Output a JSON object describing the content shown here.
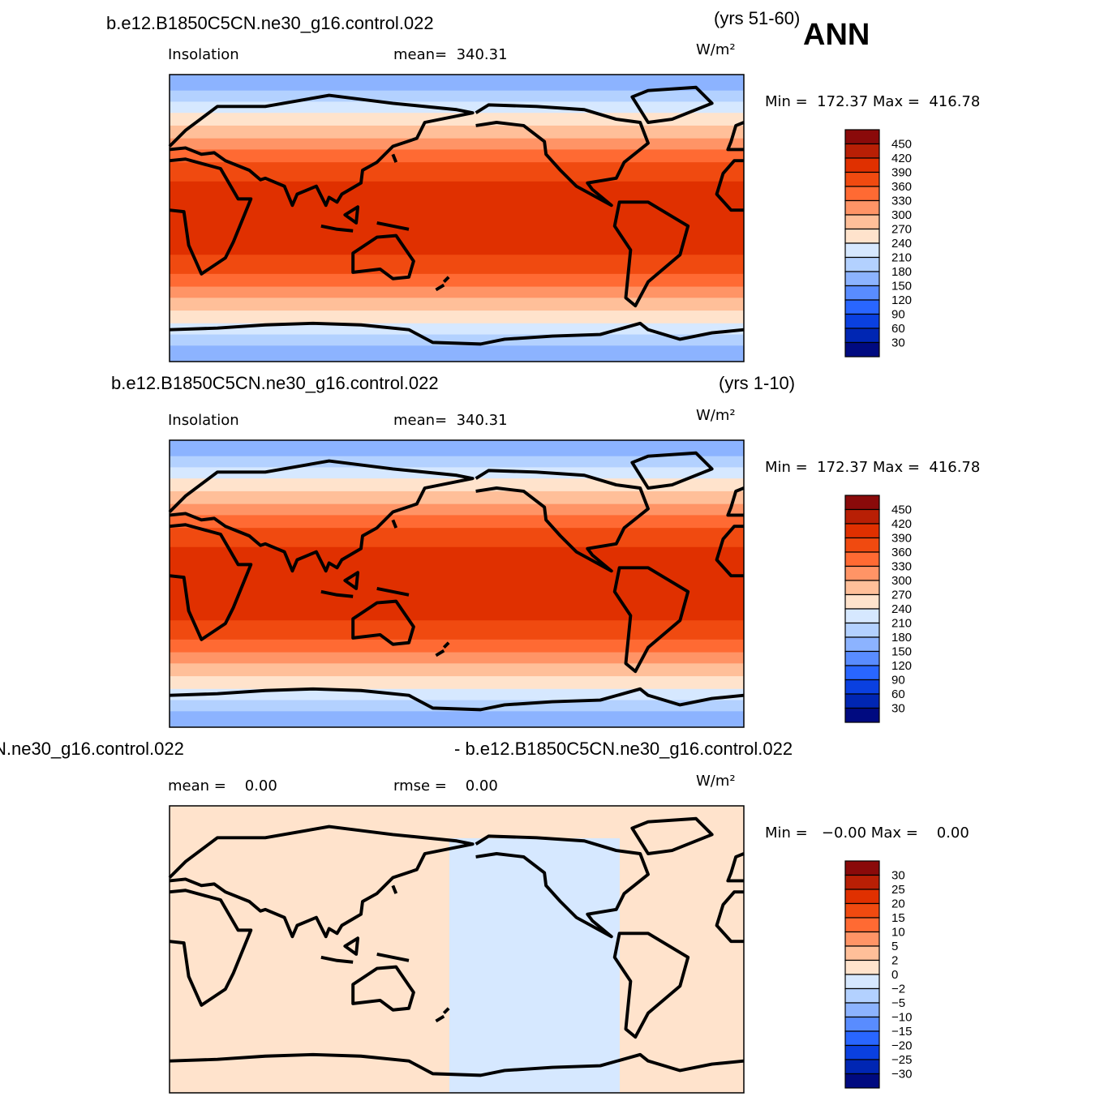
{
  "header": {
    "season": "ANN"
  },
  "panels": [
    {
      "title_left": "b.e12.B1850C5CN.ne30_g16.control.022",
      "title_right": "(yrs 51-60)",
      "label_left": "Insolation",
      "label_mid": "mean=  340.31",
      "units": "W/m²",
      "minmax": "Min =  172.37 Max =  416.78",
      "colorbar": {
        "labels": [
          "450",
          "420",
          "390",
          "360",
          "330",
          "300",
          "270",
          "240",
          "210",
          "180",
          "150",
          "120",
          "90",
          "60",
          "30"
        ],
        "colors": [
          "#8a0a0a",
          "#b81f05",
          "#e03000",
          "#f04a10",
          "#ff6a33",
          "#ff9466",
          "#ffbf99",
          "#ffe3cc",
          "#d6e8ff",
          "#b3d1ff",
          "#8cb3ff",
          "#598cff",
          "#2966ff",
          "#0a40e0",
          "#0026b3",
          "#000a80"
        ]
      }
    },
    {
      "title_left": "b.e12.B1850C5CN.ne30_g16.control.022",
      "title_right": "(yrs 1-10)",
      "label_left": "Insolation",
      "label_mid": "mean=  340.31",
      "units": "W/m²",
      "minmax": "Min =  172.37 Max =  416.78",
      "colorbar": {
        "labels": [
          "450",
          "420",
          "390",
          "360",
          "330",
          "300",
          "270",
          "240",
          "210",
          "180",
          "150",
          "120",
          "90",
          "60",
          "30"
        ],
        "colors": [
          "#8a0a0a",
          "#b81f05",
          "#e03000",
          "#f04a10",
          "#ff6a33",
          "#ff9466",
          "#ffbf99",
          "#ffe3cc",
          "#d6e8ff",
          "#b3d1ff",
          "#8cb3ff",
          "#598cff",
          "#2966ff",
          "#0a40e0",
          "#0026b3",
          "#000a80"
        ]
      }
    },
    {
      "title_left": "N.ne30_g16.control.022",
      "title_right": "- b.e12.B1850C5CN.ne30_g16.control.022",
      "label_left": "mean =    0.00",
      "label_mid": "rmse =    0.00",
      "units": "W/m²",
      "minmax": "Min =   −0.00 Max =    0.00",
      "colorbar": {
        "labels": [
          "30",
          "25",
          "20",
          "15",
          "10",
          "5",
          "2",
          "0",
          "−2",
          "−5",
          "−10",
          "−15",
          "−20",
          "−25",
          "−30"
        ],
        "colors": [
          "#8a0a0a",
          "#b81f05",
          "#e03000",
          "#f04a10",
          "#ff6a33",
          "#ff9466",
          "#ffbf99",
          "#ffe3cc",
          "#d6e8ff",
          "#b3d1ff",
          "#8cb3ff",
          "#598cff",
          "#2966ff",
          "#0a40e0",
          "#0026b3",
          "#000a80"
        ]
      }
    }
  ]
}
